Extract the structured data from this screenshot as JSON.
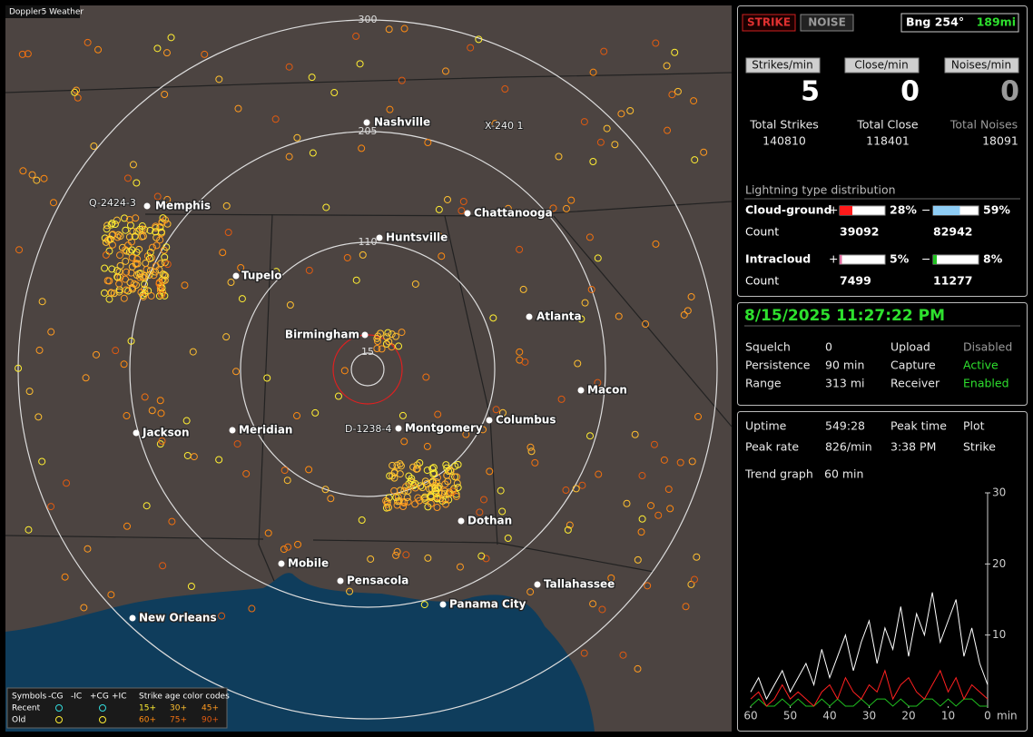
{
  "app_title": "Doppler5 Weather",
  "map": {
    "range_labels": [
      "300",
      "205",
      "110",
      "15"
    ],
    "cities": [
      "Nashville",
      "Memphis",
      "Chattanooga",
      "Huntsville",
      "Tupelo",
      "Atlanta",
      "Birmingham",
      "Macon",
      "Jackson",
      "Meridian",
      "Montgomery",
      "Columbus",
      "Dothan",
      "Mobile",
      "Pensacola",
      "Tallahassee",
      "Panama City",
      "New Orleans"
    ],
    "storm_labels": [
      "Q-2424-3",
      "X-240 1",
      "D-1238-4"
    ],
    "legend": {
      "headers": [
        "Symbols",
        "-CG",
        "-IC",
        "+CG",
        "+IC",
        "Strike age color codes"
      ],
      "rows": [
        {
          "label": "Recent",
          "ages": [
            "15+",
            "30+",
            "45+"
          ]
        },
        {
          "label": "Old",
          "ages": [
            "60+",
            "75+",
            "90+"
          ]
        }
      ]
    }
  },
  "strike_panel": {
    "modes": [
      "STRIKE",
      "NOISE"
    ],
    "bearing": "Bng 254°",
    "distance": "189mi",
    "rate_labels": [
      "Strikes/min",
      "Close/min",
      "Noises/min"
    ],
    "rate_values": [
      5,
      0,
      0
    ],
    "total_labels": [
      "Total Strikes",
      "Total Close",
      "Total Noises"
    ],
    "total_values": [
      140810,
      118401,
      18091
    ],
    "distribution": {
      "title": "Lightning type distribution",
      "signs": [
        "+",
        "−"
      ],
      "rows": [
        {
          "type": "Cloud-ground",
          "plus": {
            "value": 28,
            "label": "28%"
          },
          "minus": {
            "value": 59,
            "label": "59%"
          },
          "count_label": "Count",
          "counts": [
            39092,
            82942
          ]
        },
        {
          "type": "Intracloud",
          "plus": {
            "value": 5,
            "label": "5%"
          },
          "minus": {
            "value": 8,
            "label": "8%"
          },
          "count_label": "Count",
          "counts": [
            7499,
            11277
          ]
        }
      ]
    }
  },
  "status_panel": {
    "datetime": "8/15/2025 11:27:22 PM",
    "rows": [
      [
        "Squelch",
        "0",
        "Upload",
        "Disabled"
      ],
      [
        "Persistence",
        "90 min",
        "Capture",
        "Active"
      ],
      [
        "Range",
        "313 mi",
        "Receiver",
        "Enabled"
      ]
    ]
  },
  "trend_panel": {
    "rows": [
      [
        "Uptime",
        "549:28",
        "Peak time",
        "Plot"
      ],
      [
        "Peak rate",
        "826/min",
        "3:38 PM",
        "Strike"
      ]
    ],
    "trend_label": "Trend graph",
    "trend_span": "60 min"
  },
  "chart_data": {
    "type": "line",
    "x": [
      60,
      58,
      56,
      54,
      52,
      50,
      48,
      46,
      44,
      42,
      40,
      38,
      36,
      34,
      32,
      30,
      28,
      26,
      24,
      22,
      20,
      18,
      16,
      14,
      12,
      10,
      8,
      6,
      4,
      2,
      0
    ],
    "xlim": [
      60,
      0
    ],
    "xticks": [
      60,
      50,
      40,
      30,
      20,
      10,
      0
    ],
    "x_unit": "min",
    "ylim": [
      0,
      30
    ],
    "yticks": [
      10,
      20,
      30
    ],
    "series": [
      {
        "color": "#ffffff",
        "values": [
          2,
          4,
          1,
          3,
          5,
          2,
          4,
          6,
          3,
          8,
          4,
          7,
          10,
          5,
          9,
          12,
          6,
          11,
          8,
          14,
          7,
          13,
          10,
          16,
          9,
          12,
          15,
          7,
          11,
          6,
          3
        ]
      },
      {
        "color": "#ff2020",
        "values": [
          1,
          2,
          0,
          1,
          3,
          1,
          2,
          1,
          0,
          2,
          3,
          1,
          4,
          2,
          1,
          3,
          2,
          5,
          1,
          3,
          4,
          2,
          1,
          3,
          5,
          2,
          4,
          1,
          3,
          2,
          1
        ]
      },
      {
        "color": "#20c020",
        "values": [
          0,
          1,
          0,
          0,
          1,
          0,
          1,
          0,
          0,
          1,
          0,
          1,
          0,
          0,
          1,
          0,
          1,
          1,
          0,
          1,
          0,
          0,
          1,
          1,
          0,
          1,
          0,
          1,
          1,
          0,
          0
        ]
      }
    ]
  }
}
